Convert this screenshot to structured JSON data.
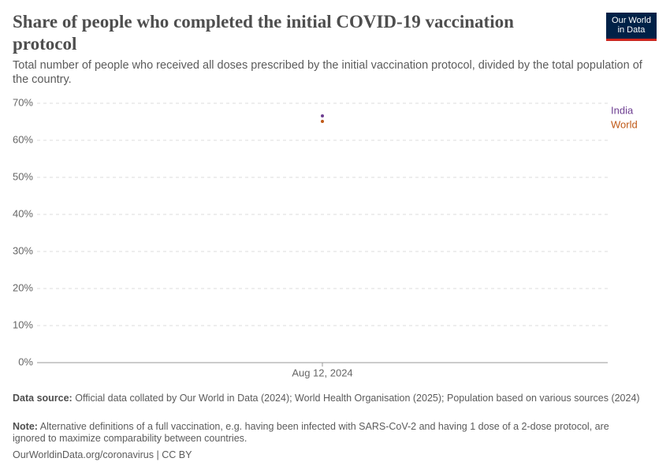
{
  "chart_data": {
    "type": "scatter",
    "title": "Share of people who completed the initial COVID-19 vaccination protocol",
    "subtitle": "Total number of people who received all doses prescribed by the initial vaccination protocol, divided by the total population of the country.",
    "x": [
      "Aug 12, 2024"
    ],
    "series": [
      {
        "name": "India",
        "color": "#6d3e91",
        "values": [
          66.6
        ]
      },
      {
        "name": "World",
        "color": "#c05917",
        "values": [
          65.1
        ]
      }
    ],
    "ylim": [
      0,
      70
    ],
    "yticks": [
      {
        "value": 0,
        "label": "0%"
      },
      {
        "value": 10,
        "label": "10%"
      },
      {
        "value": 20,
        "label": "20%"
      },
      {
        "value": 30,
        "label": "30%"
      },
      {
        "value": 40,
        "label": "40%"
      },
      {
        "value": 50,
        "label": "50%"
      },
      {
        "value": 60,
        "label": "60%"
      },
      {
        "value": 70,
        "label": "70%"
      }
    ],
    "grid": true,
    "source_label": "Data source:",
    "source": "Official data collated by Our World in Data (2024); World Health Organisation (2025); Population based on various sources (2024)",
    "note_label": "Note:",
    "note": "Alternative definitions of a full vaccination, e.g. having been infected with SARS-CoV-2 and having 1 dose of a 2-dose protocol, are ignored to maximize comparability between countries.",
    "footer": "OurWorldinData.org/coronavirus | CC BY",
    "logo": [
      "Our World",
      "in Data"
    ]
  }
}
